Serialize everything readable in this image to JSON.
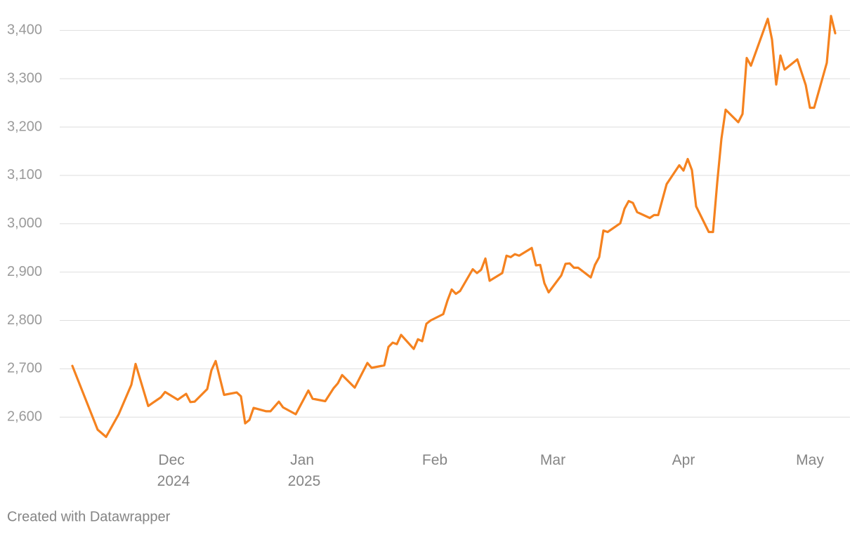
{
  "chart_data": {
    "type": "line",
    "x": [
      -24,
      -18,
      -16,
      -13,
      -10,
      -9,
      -6,
      -5,
      -3,
      -2,
      1,
      3,
      4,
      5,
      8,
      9,
      10,
      12,
      15,
      16,
      17,
      18,
      19,
      22,
      23,
      25,
      26,
      29,
      32,
      33,
      36,
      38,
      39,
      40,
      43,
      44,
      46,
      47,
      50,
      51,
      52,
      53,
      54,
      57,
      58,
      59,
      60,
      61,
      64,
      65,
      66,
      67,
      68,
      71,
      72,
      73,
      74,
      75,
      78,
      79,
      80,
      81,
      82,
      85,
      86,
      87,
      88,
      89,
      92,
      93,
      94,
      95,
      96,
      99,
      100,
      101,
      102,
      103,
      106,
      107,
      108,
      109,
      110,
      113,
      114,
      115,
      116,
      117,
      120,
      121,
      122,
      123,
      124,
      127,
      128,
      129,
      130,
      131,
      134,
      135,
      136,
      137,
      141,
      142,
      143,
      144,
      145,
      148,
      150,
      151,
      152,
      155,
      156,
      157
    ],
    "series": [
      {
        "color": "#f5821f",
        "values": [
          2706,
          2574,
          2559,
          2606,
          2667,
          2710,
          2623,
          2629,
          2641,
          2652,
          2636,
          2648,
          2631,
          2632,
          2658,
          2697,
          2716,
          2646,
          2651,
          2643,
          2587,
          2594,
          2619,
          2612,
          2612,
          2632,
          2620,
          2606,
          2655,
          2638,
          2633,
          2660,
          2670,
          2687,
          2661,
          2678,
          2712,
          2702,
          2707,
          2745,
          2754,
          2751,
          2770,
          2741,
          2761,
          2757,
          2793,
          2800,
          2813,
          2841,
          2864,
          2855,
          2861,
          2906,
          2898,
          2905,
          2928,
          2882,
          2898,
          2934,
          2931,
          2937,
          2934,
          2950,
          2914,
          2915,
          2877,
          2858,
          2893,
          2917,
          2918,
          2909,
          2909,
          2889,
          2915,
          2931,
          2986,
          2983,
          3001,
          3031,
          3047,
          3043,
          3024,
          3012,
          3018,
          3018,
          3050,
          3082,
          3121,
          3110,
          3134,
          3111,
          3036,
          2983,
          2983,
          3085,
          3176,
          3236,
          3210,
          3227,
          3343,
          3327,
          3424,
          3381,
          3288,
          3348,
          3319,
          3340,
          3287,
          3240,
          3240,
          3333,
          3430,
          3394
        ]
      }
    ],
    "xlim": [
      -27,
      160.5
    ],
    "xticks": [
      {
        "value": 0,
        "label": "Dec 2024"
      },
      {
        "value": 31,
        "label": "Jan 2025"
      },
      {
        "value": 62,
        "label": "Feb"
      },
      {
        "value": 90,
        "label": "Mar"
      },
      {
        "value": 121,
        "label": "Apr"
      },
      {
        "value": 151,
        "label": "May"
      }
    ],
    "ylim": [
      2548,
      3460
    ],
    "yticks": [
      {
        "value": 2600,
        "label": "2,600"
      },
      {
        "value": 2700,
        "label": "2,700"
      },
      {
        "value": 2800,
        "label": "2,800"
      },
      {
        "value": 2900,
        "label": "2,900"
      },
      {
        "value": 3000,
        "label": "3,000"
      },
      {
        "value": 3100,
        "label": "3,100"
      },
      {
        "value": 3200,
        "label": "3,200"
      },
      {
        "value": 3300,
        "label": "3,300"
      },
      {
        "value": 3400,
        "label": "3,400"
      }
    ],
    "grid": true,
    "source": "Created with Datawrapper"
  }
}
